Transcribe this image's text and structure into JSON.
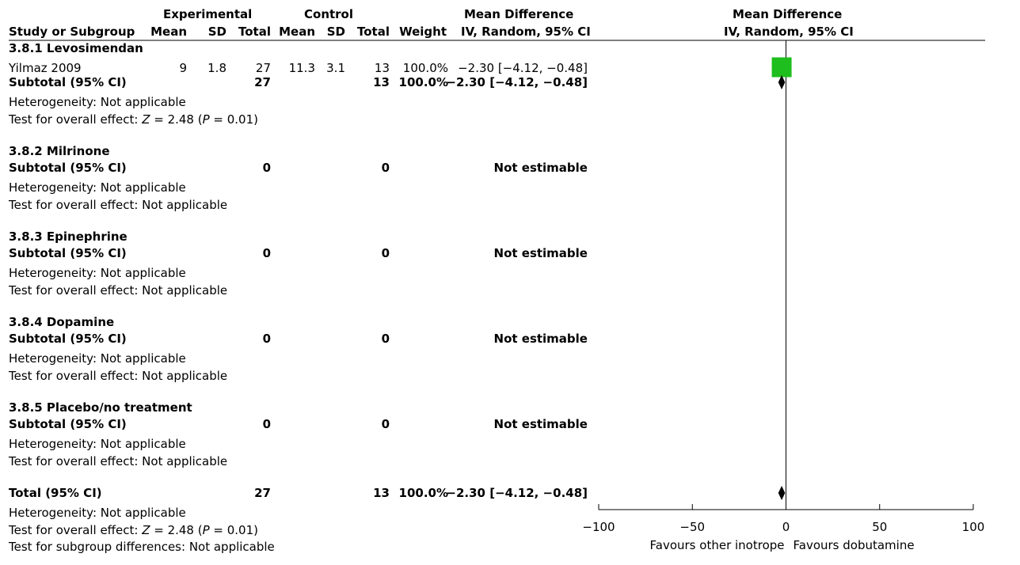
{
  "header": {
    "experimental": "Experimental",
    "control": "Control",
    "md_title": "Mean Difference",
    "md_method": "IV, Random, 95% CI",
    "plot_title": "Mean Difference",
    "plot_method": "IV, Random, 95% CI",
    "study_col": "Study or Subgroup",
    "mean": "Mean",
    "sd": "SD",
    "total": "Total",
    "weight": "Weight"
  },
  "subgroups": [
    {
      "title": "3.8.1 Levosimendan",
      "study": {
        "name": "Yilmaz 2009",
        "e_mean": "9",
        "e_sd": "1.8",
        "e_total": "27",
        "c_mean": "11.3",
        "c_sd": "3.1",
        "c_total": "13",
        "weight": "100.0%",
        "ci": "−2.30 [−4.12, −0.48]"
      },
      "subtotal": {
        "label": "Subtotal (95% CI)",
        "e_total": "27",
        "c_total": "13",
        "weight": "100.0%",
        "ci": "−2.30 [−4.12, −0.48]"
      },
      "heterogeneity": "Heterogeneity: Not applicable",
      "effect_prefix": "Test for overall effect: ",
      "effect_z": "Z",
      "effect_mid": " = 2.48 (",
      "effect_p": "P",
      "effect_end": " = 0.01)"
    },
    {
      "title": "3.8.2 Milrinone",
      "subtotal": {
        "label": "Subtotal (95% CI)",
        "e_total": "0",
        "c_total": "0",
        "ci": "Not estimable"
      },
      "heterogeneity": "Heterogeneity: Not applicable",
      "effect": "Test for overall effect: Not applicable"
    },
    {
      "title": "3.8.3 Epinephrine",
      "subtotal": {
        "label": "Subtotal (95% CI)",
        "e_total": "0",
        "c_total": "0",
        "ci": "Not estimable"
      },
      "heterogeneity": "Heterogeneity: Not applicable",
      "effect": "Test for overall effect: Not applicable"
    },
    {
      "title": "3.8.4 Dopamine",
      "subtotal": {
        "label": "Subtotal (95% CI)",
        "e_total": "0",
        "c_total": "0",
        "ci": "Not estimable"
      },
      "heterogeneity": "Heterogeneity: Not applicable",
      "effect": "Test for overall effect: Not applicable"
    },
    {
      "title": "3.8.5 Placebo/no treatment",
      "subtotal": {
        "label": "Subtotal (95% CI)",
        "e_total": "0",
        "c_total": "0",
        "ci": "Not estimable"
      },
      "heterogeneity": "Heterogeneity: Not applicable",
      "effect": "Test for overall effect: Not applicable"
    }
  ],
  "total": {
    "label": "Total (95% CI)",
    "e_total": "27",
    "c_total": "13",
    "weight": "100.0%",
    "ci": "−2.30 [−4.12, −0.48]",
    "heterogeneity": "Heterogeneity: Not applicable",
    "effect_prefix": "Test for overall effect: ",
    "effect_z": "Z",
    "effect_mid": " = 2.48 (",
    "effect_p": "P",
    "effect_end": " = 0.01)",
    "subgroup_diff": "Test for subgroup differences: Not applicable"
  },
  "chart_data": {
    "type": "forest",
    "xlim": [
      -100,
      100
    ],
    "ticks": [
      -100,
      -50,
      0,
      50,
      100
    ],
    "tick_labels": [
      "−100",
      "−50",
      "0",
      "50",
      "100"
    ],
    "favours_left": "Favours other inotrope",
    "favours_right": "Favours dobutamine",
    "study_points": [
      {
        "study": "Yilmaz 2009",
        "md": -2.3,
        "lower": -4.12,
        "upper": -0.48,
        "weight": 100.0
      }
    ],
    "diamonds": [
      {
        "label": "3.8.1 Subtotal",
        "md": -2.3,
        "lower": -4.12,
        "upper": -0.48
      },
      {
        "label": "Total",
        "md": -2.3,
        "lower": -4.12,
        "upper": -0.48
      }
    ],
    "colors": {
      "square": "#1dbe1d",
      "line": "#000000"
    }
  }
}
